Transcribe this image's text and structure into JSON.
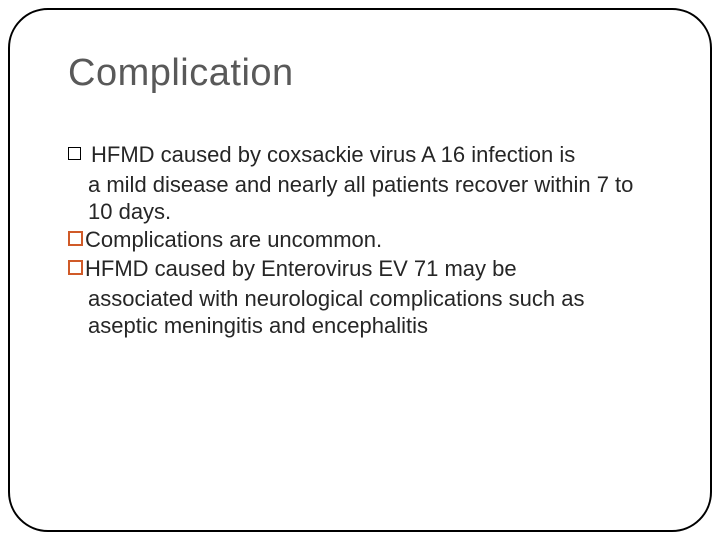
{
  "slide": {
    "title": "Complication",
    "title_color": "#595959",
    "title_fontsize": 38,
    "body_fontsize": 22,
    "border_color": "#000000",
    "border_radius": 40,
    "background_color": "#ffffff",
    "bullets": [
      {
        "marker": "open-square",
        "marker_color": "#000000",
        "text_first": "HFMD caused by coxsackie virus A 16 infection is",
        "text_rest": "a mild disease and nearly all patients recover within 7 to 10 days."
      },
      {
        "marker": "orange-square",
        "marker_color": "#d05a28",
        "text_first": "Complications are uncommon.",
        "text_rest": ""
      },
      {
        "marker": "orange-square",
        "marker_color": "#d05a28",
        "text_first": "HFMD caused by Enterovirus EV 71 may be",
        "text_rest": "associated with neurological complications such as aseptic meningitis and encephalitis"
      }
    ]
  }
}
